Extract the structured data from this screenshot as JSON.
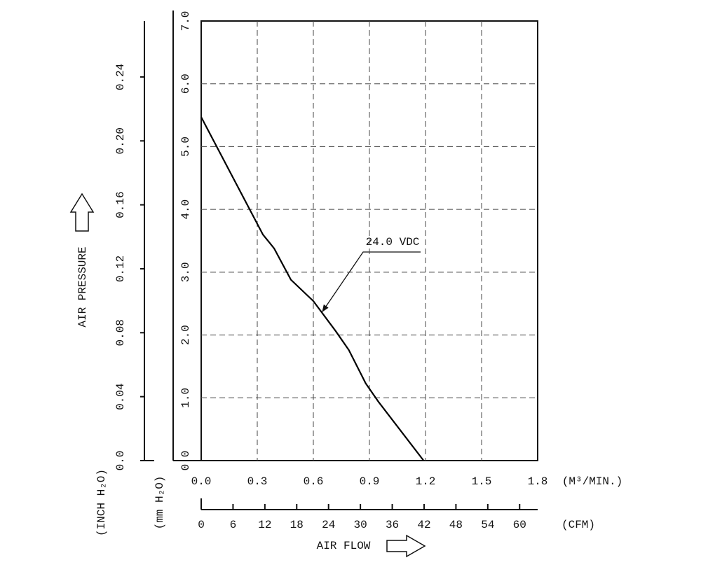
{
  "chart_data": {
    "type": "line",
    "x_label": "(M³/MIN.)",
    "y_label": "AIR PRESSURE",
    "y_unit": "(mm H₂O)",
    "y2_unit": "(INCH H₂O)",
    "x2_label": "AIR FLOW",
    "x2_unit": "(CFM)",
    "x": [
      0,
      0.3,
      0.33,
      0.39,
      0.48,
      0.6,
      0.72,
      0.79,
      0.88,
      0.95,
      1.19
    ],
    "series": [
      {
        "name": "24.0 VDC",
        "color": "#000000",
        "values": [
          5.47,
          3.77,
          3.6,
          3.38,
          2.88,
          2.54,
          2.06,
          1.76,
          1.23,
          0.93,
          0
        ]
      }
    ],
    "xlim": [
      0,
      1.8
    ],
    "xticks": [
      {
        "value": 0,
        "label": "0.0"
      },
      0.3,
      0.6,
      0.9,
      1.2,
      1.5,
      1.8
    ],
    "ylim": [
      0,
      7
    ],
    "yticks": [
      {
        "value": 0,
        "label": "0.0"
      },
      {
        "value": 1,
        "label": "1.0"
      },
      {
        "value": 2,
        "label": "2.0"
      },
      {
        "value": 3,
        "label": "3.0"
      },
      {
        "value": 4,
        "label": "4.0"
      },
      {
        "value": 5,
        "label": "5.0"
      },
      {
        "value": 6,
        "label": "6.0"
      },
      {
        "value": 7,
        "label": "7.0"
      }
    ],
    "y2lim": [
      0,
      0.275
    ],
    "y2ticks": [
      {
        "value": 0,
        "label": "0.0"
      },
      0.04,
      0.08,
      0.12,
      0.16,
      {
        "value": 0.2,
        "label": "0.20"
      },
      0.24
    ],
    "x2lim": [
      0,
      63.4
    ],
    "x2ticks": [
      0,
      6,
      12,
      18,
      24,
      30,
      36,
      42,
      48,
      54,
      60
    ],
    "grid": true
  }
}
